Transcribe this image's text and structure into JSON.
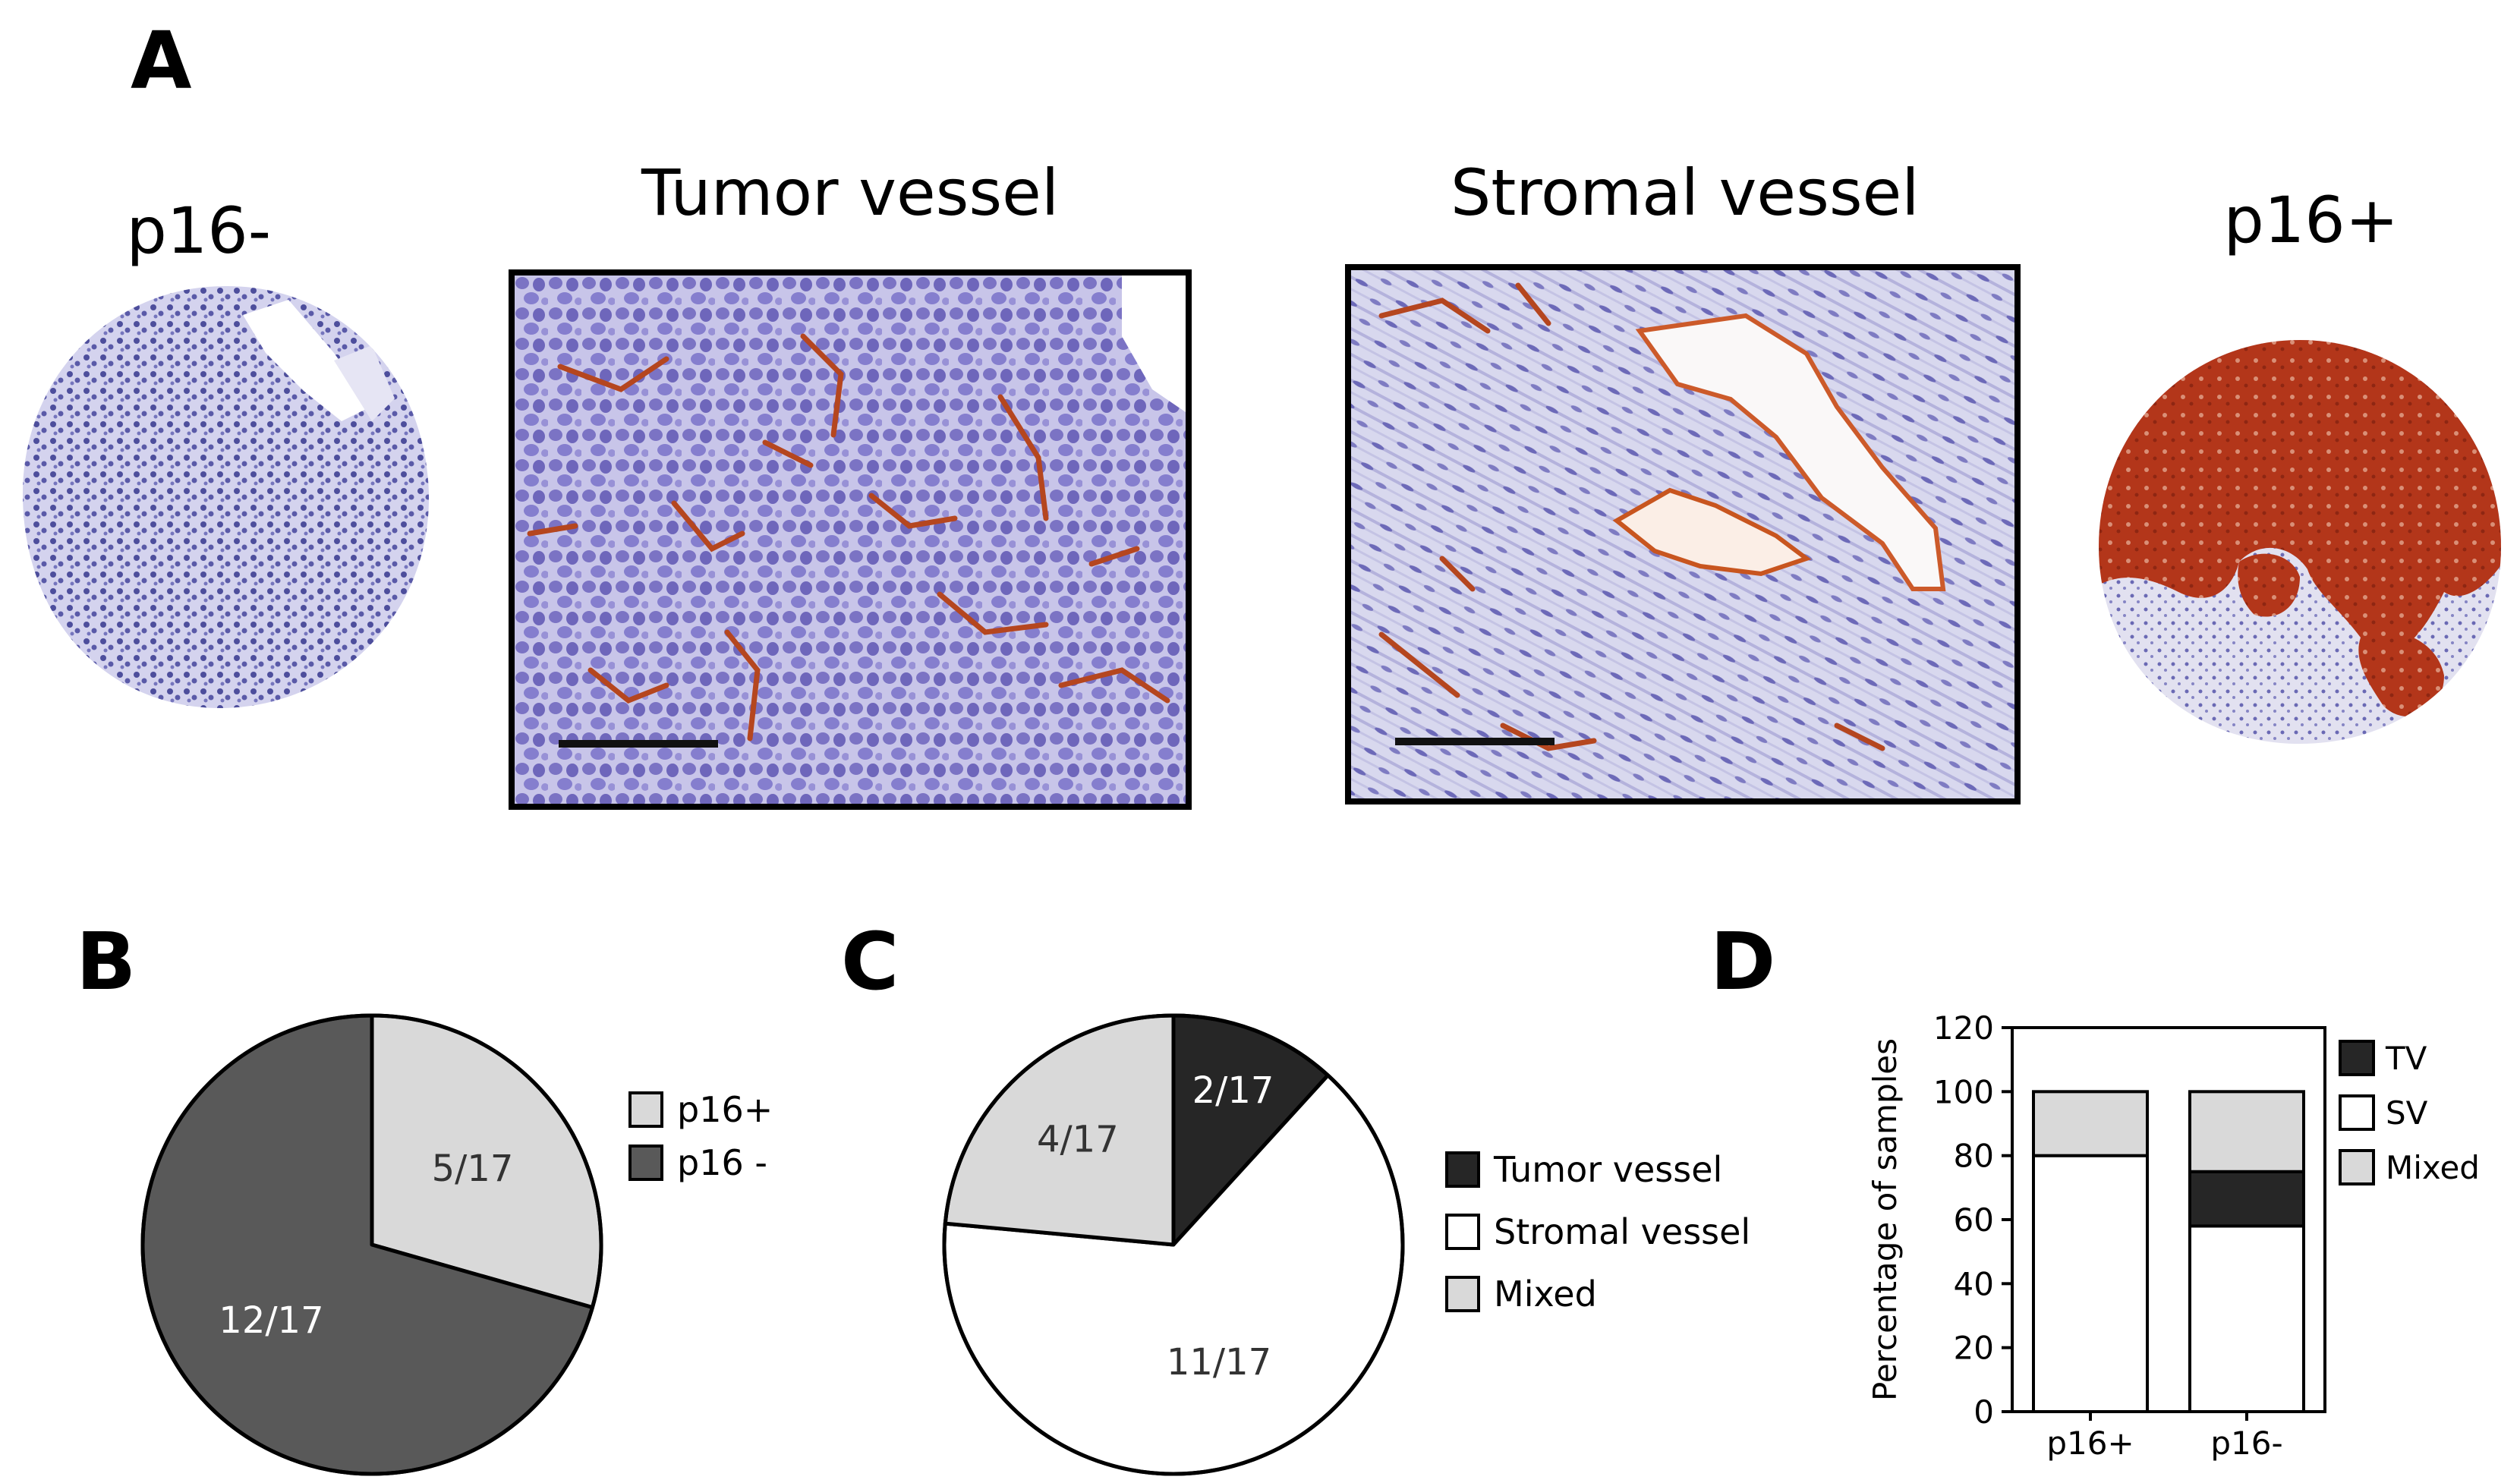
{
  "panels": {
    "a": {
      "letter": "A",
      "p16_neg_label": "p16-",
      "tumor_vessel_title": "Tumor vessel",
      "stromal_vessel_title": "Stromal vessel",
      "p16_pos_label": "p16+"
    },
    "b": {
      "letter": "B"
    },
    "c": {
      "letter": "C"
    },
    "d": {
      "letter": "D"
    }
  },
  "colors": {
    "light_gray": "#d9d9d9",
    "dark_gray": "#595959",
    "black": "#262626",
    "white": "#ffffff",
    "he_purple": "#8a86c9",
    "ihc_brown": "#b0391e"
  },
  "chart_data": [
    {
      "id": "B",
      "type": "pie",
      "slices": [
        {
          "label": "p16+",
          "value": 5,
          "text": "5/17",
          "color": "#d9d9d9"
        },
        {
          "label": "p16 -",
          "value": 12,
          "text": "12/17",
          "color": "#595959"
        }
      ],
      "legend": [
        "p16+",
        "p16 -"
      ],
      "legend_position": "right"
    },
    {
      "id": "C",
      "type": "pie",
      "slices": [
        {
          "label": "Tumor vessel",
          "value": 2,
          "text": "2/17",
          "color": "#262626"
        },
        {
          "label": "Stromal vessel",
          "value": 11,
          "text": "11/17",
          "color": "#ffffff"
        },
        {
          "label": "Mixed",
          "value": 4,
          "text": "4/17",
          "color": "#d9d9d9"
        }
      ],
      "legend": [
        "Tumor vessel",
        "Stromal vessel",
        "Mixed"
      ],
      "legend_position": "right"
    },
    {
      "id": "D",
      "type": "bar",
      "stacked": true,
      "categories": [
        "p16+",
        "p16-"
      ],
      "series": [
        {
          "name": "SV",
          "values": [
            80,
            58
          ],
          "color": "#ffffff"
        },
        {
          "name": "TV",
          "values": [
            0,
            17
          ],
          "color": "#262626"
        },
        {
          "name": "Mixed",
          "values": [
            20,
            25
          ],
          "color": "#d9d9d9"
        }
      ],
      "legend_order": [
        "TV",
        "SV",
        "Mixed"
      ],
      "ylabel": "Percentage of samples",
      "xlabel": "",
      "ylim": [
        0,
        120
      ],
      "yticks": [
        0,
        20,
        40,
        60,
        80,
        100,
        120
      ],
      "grid": false,
      "legend_position": "right"
    }
  ]
}
